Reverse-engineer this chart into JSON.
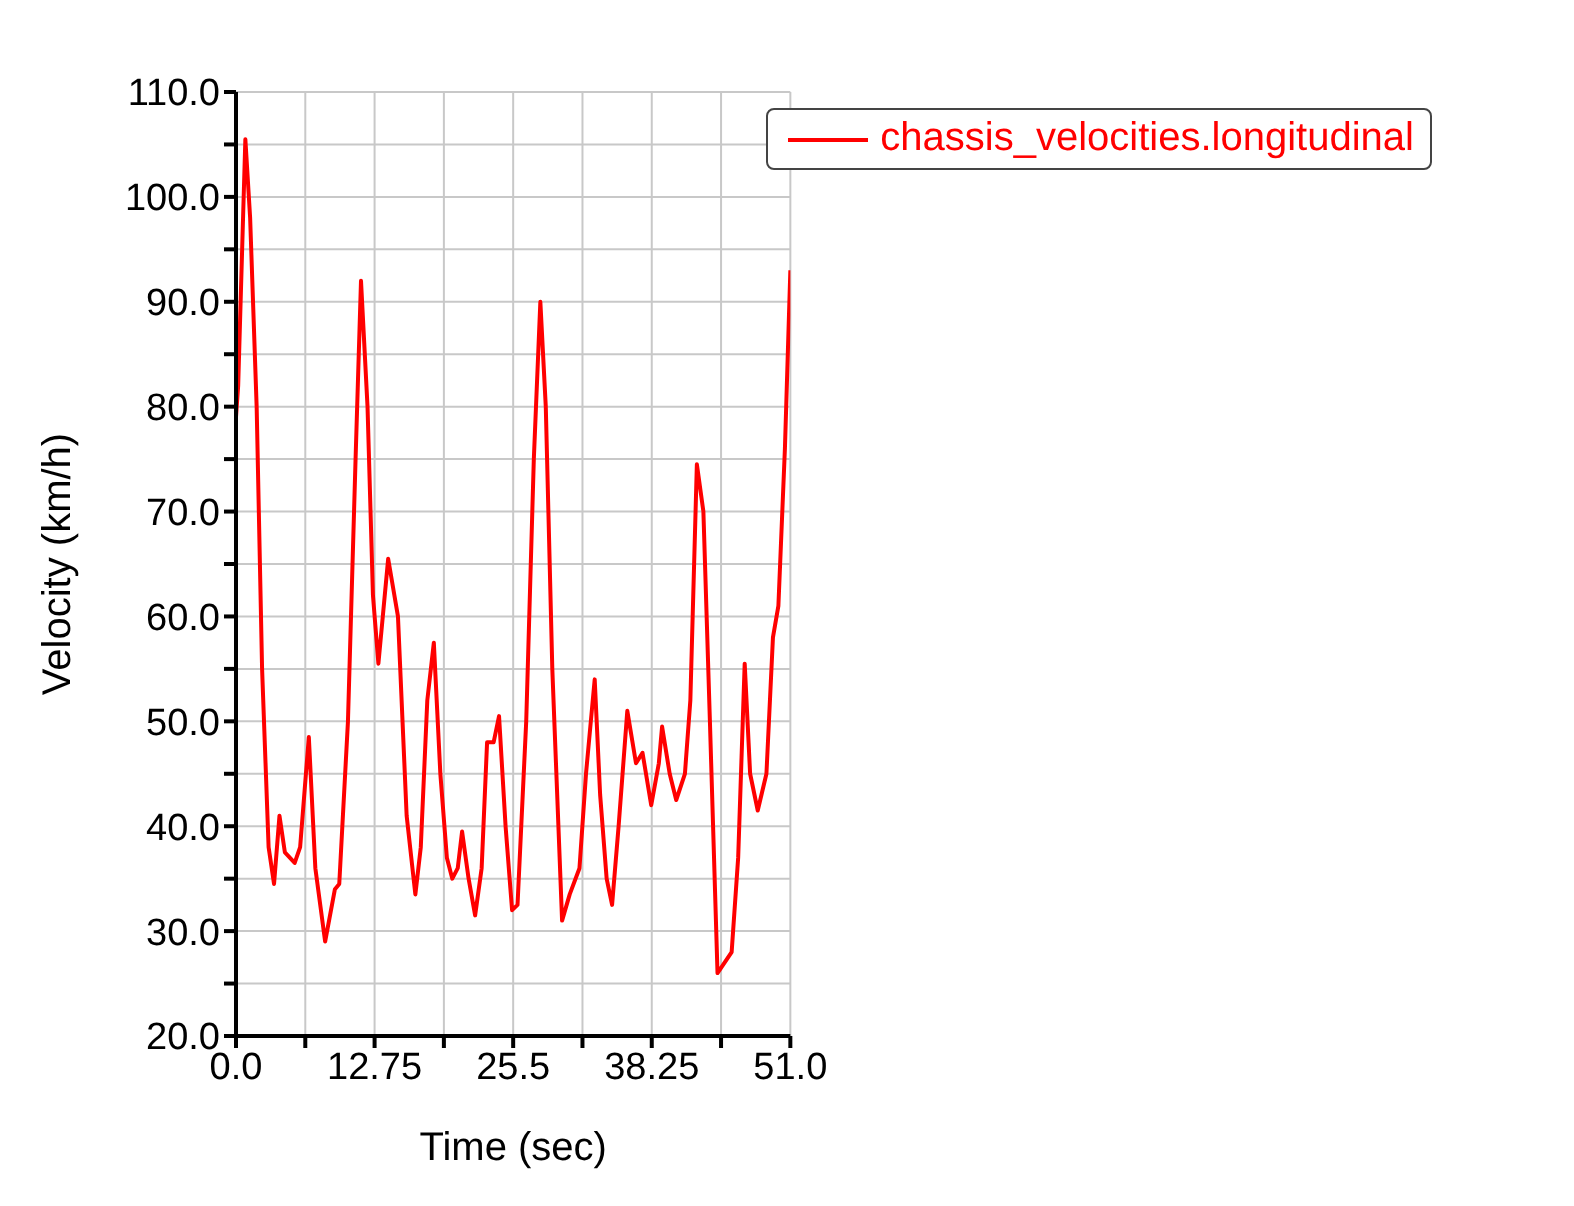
{
  "chart_data": {
    "type": "line",
    "xlabel": "Time (sec)",
    "ylabel": "Velocity (km/h)",
    "xlim": [
      0,
      51
    ],
    "ylim": [
      20,
      110
    ],
    "xticks": [
      {
        "value": 0,
        "label": "0.0"
      },
      {
        "value": 6.375,
        "label": null
      },
      {
        "value": 12.75,
        "label": "12.75"
      },
      {
        "value": 19.125,
        "label": null
      },
      {
        "value": 25.5,
        "label": "25.5"
      },
      {
        "value": 31.875,
        "label": null
      },
      {
        "value": 38.25,
        "label": "38.25"
      },
      {
        "value": 44.625,
        "label": null
      },
      {
        "value": 51,
        "label": "51.0"
      }
    ],
    "yticks": [
      {
        "value": 20,
        "label": "20.0"
      },
      {
        "value": 25,
        "label": null
      },
      {
        "value": 30,
        "label": "30.0"
      },
      {
        "value": 35,
        "label": null
      },
      {
        "value": 40,
        "label": "40.0"
      },
      {
        "value": 45,
        "label": null
      },
      {
        "value": 50,
        "label": "50.0"
      },
      {
        "value": 55,
        "label": null
      },
      {
        "value": 60,
        "label": "60.0"
      },
      {
        "value": 65,
        "label": null
      },
      {
        "value": 70,
        "label": "70.0"
      },
      {
        "value": 75,
        "label": null
      },
      {
        "value": 80,
        "label": "80.0"
      },
      {
        "value": 85,
        "label": null
      },
      {
        "value": 90,
        "label": "90.0"
      },
      {
        "value": 95,
        "label": null
      },
      {
        "value": 100,
        "label": "100.0"
      },
      {
        "value": 105,
        "label": null
      },
      {
        "value": 110,
        "label": "110.0"
      }
    ],
    "grid": true,
    "legend": "top right",
    "marker": "none",
    "line_style": "solid",
    "x": [
      0,
      0.2,
      0.86,
      1.3,
      1.9,
      2.4,
      3.0,
      3.5,
      4.0,
      4.5,
      5.4,
      5.9,
      6.7,
      7.3,
      8.2,
      9.1,
      9.5,
      10.3,
      11.0,
      11.5,
      12.1,
      12.6,
      13.1,
      14.0,
      14.9,
      15.7,
      16.5,
      17.0,
      17.6,
      18.2,
      18.8,
      19.4,
      19.9,
      20.4,
      20.8,
      21.4,
      22.0,
      22.6,
      23.1,
      23.7,
      24.2,
      24.8,
      25.4,
      25.9,
      26.7,
      27.4,
      28.0,
      28.5,
      29.1,
      30.0,
      30.7,
      31.6,
      32.2,
      33.0,
      33.5,
      34.1,
      34.6,
      35.2,
      36.0,
      36.8,
      37.4,
      38.2,
      38.9,
      39.2,
      39.9,
      40.5,
      41.3,
      41.8,
      42.4,
      43.0,
      43.6,
      44.3,
      45.6,
      46.2,
      46.8,
      47.3,
      48.0,
      48.8,
      49.4,
      49.9,
      50.5,
      51.0
    ],
    "series": [
      {
        "name": "chassis_velocities.longitudinal",
        "color": "#ff0000",
        "values": [
          79,
          82,
          105.5,
          98,
          80,
          55,
          38,
          34.5,
          41,
          37.5,
          36.5,
          38,
          48.5,
          36,
          29,
          34,
          34.5,
          50,
          75,
          92,
          80,
          62,
          55.5,
          65.5,
          60,
          41,
          33.5,
          38,
          52,
          57.5,
          45,
          37,
          35,
          36,
          39.5,
          35,
          31.5,
          36,
          48,
          48,
          50.5,
          40,
          32,
          32.5,
          50,
          75,
          90,
          80,
          55,
          31,
          33.5,
          36,
          45,
          54,
          43,
          35,
          32.5,
          40,
          51,
          46,
          47,
          42,
          46,
          49.5,
          45,
          42.5,
          45,
          52,
          74.5,
          70,
          50,
          26,
          28,
          37,
          55.5,
          45,
          41.5,
          45,
          58,
          61,
          76,
          93
        ]
      }
    ]
  }
}
